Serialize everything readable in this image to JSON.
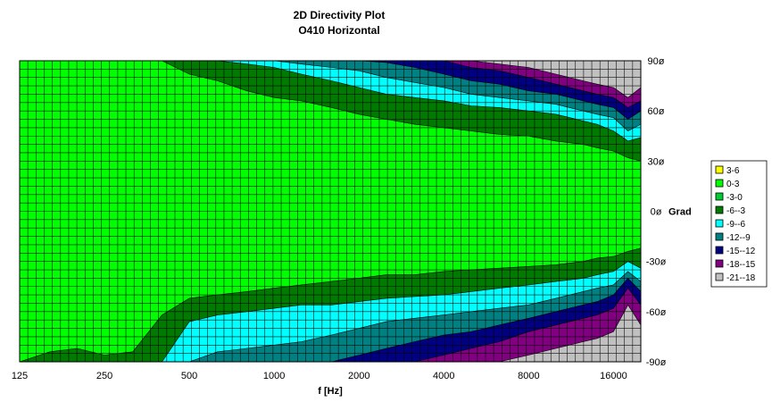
{
  "chart_data": {
    "type": "heatmap",
    "title": "2D Directivity Plot",
    "subtitle": "O410 Horizontal",
    "xlabel": "f [Hz]",
    "ylabel": "Grad",
    "x_scale": "log",
    "xlim": [
      125,
      20000
    ],
    "ylim": [
      -90,
      90
    ],
    "x_ticks": [
      125,
      250,
      500,
      1000,
      2000,
      4000,
      8000,
      16000
    ],
    "x_tick_labels": [
      "125",
      "250",
      "500",
      "1000",
      "2000",
      "4000",
      "8000",
      "16000"
    ],
    "y_ticks": [
      90,
      60,
      30,
      0,
      -30,
      -60,
      -90
    ],
    "y_tick_labels": [
      "90ø",
      "60ø",
      "30ø",
      "0ø",
      "-30ø",
      "-60ø",
      "-90ø"
    ],
    "grid": true,
    "legend_position": "right",
    "legend": [
      {
        "label": "3-6",
        "color": "#ffff00"
      },
      {
        "label": "0-3",
        "color": "#00ff00"
      },
      {
        "label": "-3-0",
        "color": "#00cc33"
      },
      {
        "label": "-6--3",
        "color": "#007a00"
      },
      {
        "label": "-9--6",
        "color": "#00ffff"
      },
      {
        "label": "-12--9",
        "color": "#008080"
      },
      {
        "label": "-15--12",
        "color": "#000080"
      },
      {
        "label": "-18--15",
        "color": "#800080"
      },
      {
        "label": "-21--18",
        "color": "#c0c0c0"
      }
    ],
    "contours_positive_side": {
      "freqs": [
        125,
        160,
        200,
        250,
        315,
        400,
        500,
        630,
        800,
        1000,
        1250,
        1600,
        2000,
        2500,
        3150,
        4000,
        5000,
        6300,
        8000,
        10000,
        12500,
        14000,
        16000,
        18000,
        20000
      ],
      "minus3_deg": [
        90,
        90,
        90,
        90,
        90,
        90,
        82,
        78,
        72,
        68,
        66,
        62,
        58,
        55,
        52,
        50,
        48,
        46,
        45,
        42,
        40,
        38,
        36,
        32,
        30
      ],
      "minus6_deg": [
        90,
        90,
        90,
        90,
        90,
        90,
        90,
        90,
        88,
        86,
        82,
        78,
        74,
        70,
        68,
        66,
        63,
        62,
        60,
        58,
        54,
        52,
        48,
        42,
        44
      ],
      "minus9_deg": [
        90,
        90,
        90,
        90,
        90,
        90,
        90,
        90,
        90,
        90,
        88,
        86,
        84,
        80,
        77,
        74,
        70,
        68,
        66,
        64,
        60,
        58,
        56,
        48,
        52
      ],
      "minus12_deg": [
        90,
        90,
        90,
        90,
        90,
        90,
        90,
        90,
        90,
        90,
        90,
        90,
        90,
        89,
        86,
        82,
        78,
        76,
        72,
        70,
        66,
        64,
        62,
        55,
        60
      ],
      "minus15_deg": [
        90,
        90,
        90,
        90,
        90,
        90,
        90,
        90,
        90,
        90,
        90,
        90,
        90,
        90,
        90,
        90,
        86,
        84,
        80,
        76,
        72,
        70,
        68,
        62,
        66
      ],
      "minus18_deg": [
        90,
        90,
        90,
        90,
        90,
        90,
        90,
        90,
        90,
        90,
        90,
        90,
        90,
        90,
        90,
        90,
        90,
        88,
        86,
        82,
        78,
        76,
        74,
        68,
        74
      ]
    },
    "contours_negative_side": {
      "freqs": [
        125,
        160,
        200,
        250,
        315,
        400,
        500,
        630,
        800,
        1000,
        1250,
        1600,
        2000,
        2500,
        3150,
        4000,
        5000,
        6300,
        8000,
        10000,
        12500,
        14000,
        16000,
        18000,
        20000
      ],
      "minus3_deg": [
        -90,
        -84,
        -82,
        -86,
        -84,
        -62,
        -52,
        -50,
        -48,
        -46,
        -44,
        -42,
        -40,
        -38,
        -38,
        -36,
        -35,
        -34,
        -33,
        -32,
        -30,
        -28,
        -27,
        -24,
        -22
      ],
      "minus6_deg": [
        -90,
        -90,
        -90,
        -90,
        -90,
        -90,
        -66,
        -62,
        -60,
        -58,
        -56,
        -56,
        -54,
        -52,
        -51,
        -50,
        -48,
        -46,
        -44,
        -42,
        -40,
        -38,
        -36,
        -30,
        -34
      ],
      "minus9_deg": [
        -90,
        -90,
        -90,
        -90,
        -90,
        -90,
        -90,
        -84,
        -82,
        -80,
        -78,
        -74,
        -70,
        -66,
        -64,
        -62,
        -60,
        -58,
        -56,
        -52,
        -48,
        -46,
        -44,
        -36,
        -42
      ],
      "minus12_deg": [
        -90,
        -90,
        -90,
        -90,
        -90,
        -90,
        -90,
        -90,
        -90,
        -90,
        -90,
        -90,
        -86,
        -82,
        -78,
        -74,
        -72,
        -68,
        -64,
        -60,
        -56,
        -54,
        -50,
        -40,
        -48
      ],
      "minus15_deg": [
        -90,
        -90,
        -90,
        -90,
        -90,
        -90,
        -90,
        -90,
        -90,
        -90,
        -90,
        -90,
        -90,
        -90,
        -90,
        -86,
        -82,
        -78,
        -72,
        -68,
        -64,
        -62,
        -58,
        -46,
        -56
      ],
      "minus18_deg": [
        -90,
        -90,
        -90,
        -90,
        -90,
        -90,
        -90,
        -90,
        -90,
        -90,
        -90,
        -90,
        -90,
        -90,
        -90,
        -90,
        -90,
        -90,
        -86,
        -82,
        -78,
        -76,
        -72,
        -56,
        -68
      ]
    }
  }
}
